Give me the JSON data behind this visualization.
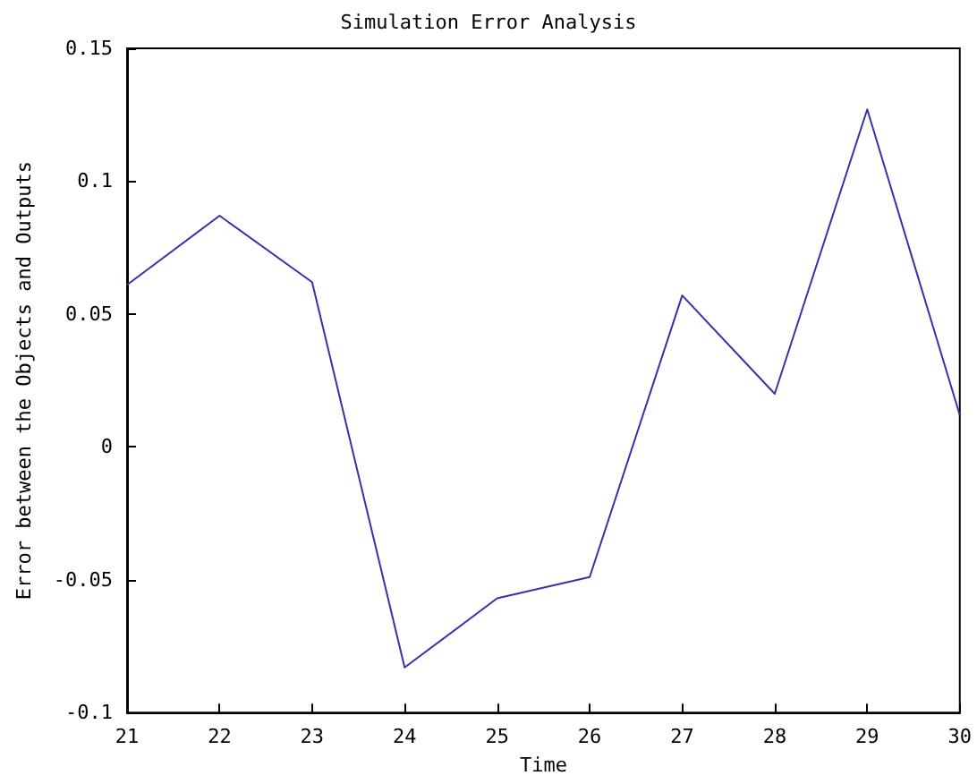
{
  "chart_data": {
    "type": "line",
    "title": "Simulation Error Analysis",
    "xlabel": "Time",
    "ylabel": "Error between the Objects and Outputs",
    "x": [
      21,
      22,
      23,
      24,
      25,
      26,
      27,
      28,
      29,
      30
    ],
    "series": [
      {
        "color": "#3333aa",
        "values": [
          0.061,
          0.087,
          0.062,
          -0.083,
          -0.057,
          -0.049,
          0.057,
          0.02,
          0.127,
          0.012
        ]
      }
    ],
    "xlim": [
      21,
      30
    ],
    "xticks": [
      21,
      22,
      23,
      24,
      25,
      26,
      27,
      28,
      29,
      30
    ],
    "ylim": [
      -0.1,
      0.15
    ],
    "yticks": [
      -0.1,
      -0.05,
      0,
      0.05,
      0.1,
      0.15
    ],
    "grid": false,
    "marker": "none",
    "line_style": "solid"
  }
}
